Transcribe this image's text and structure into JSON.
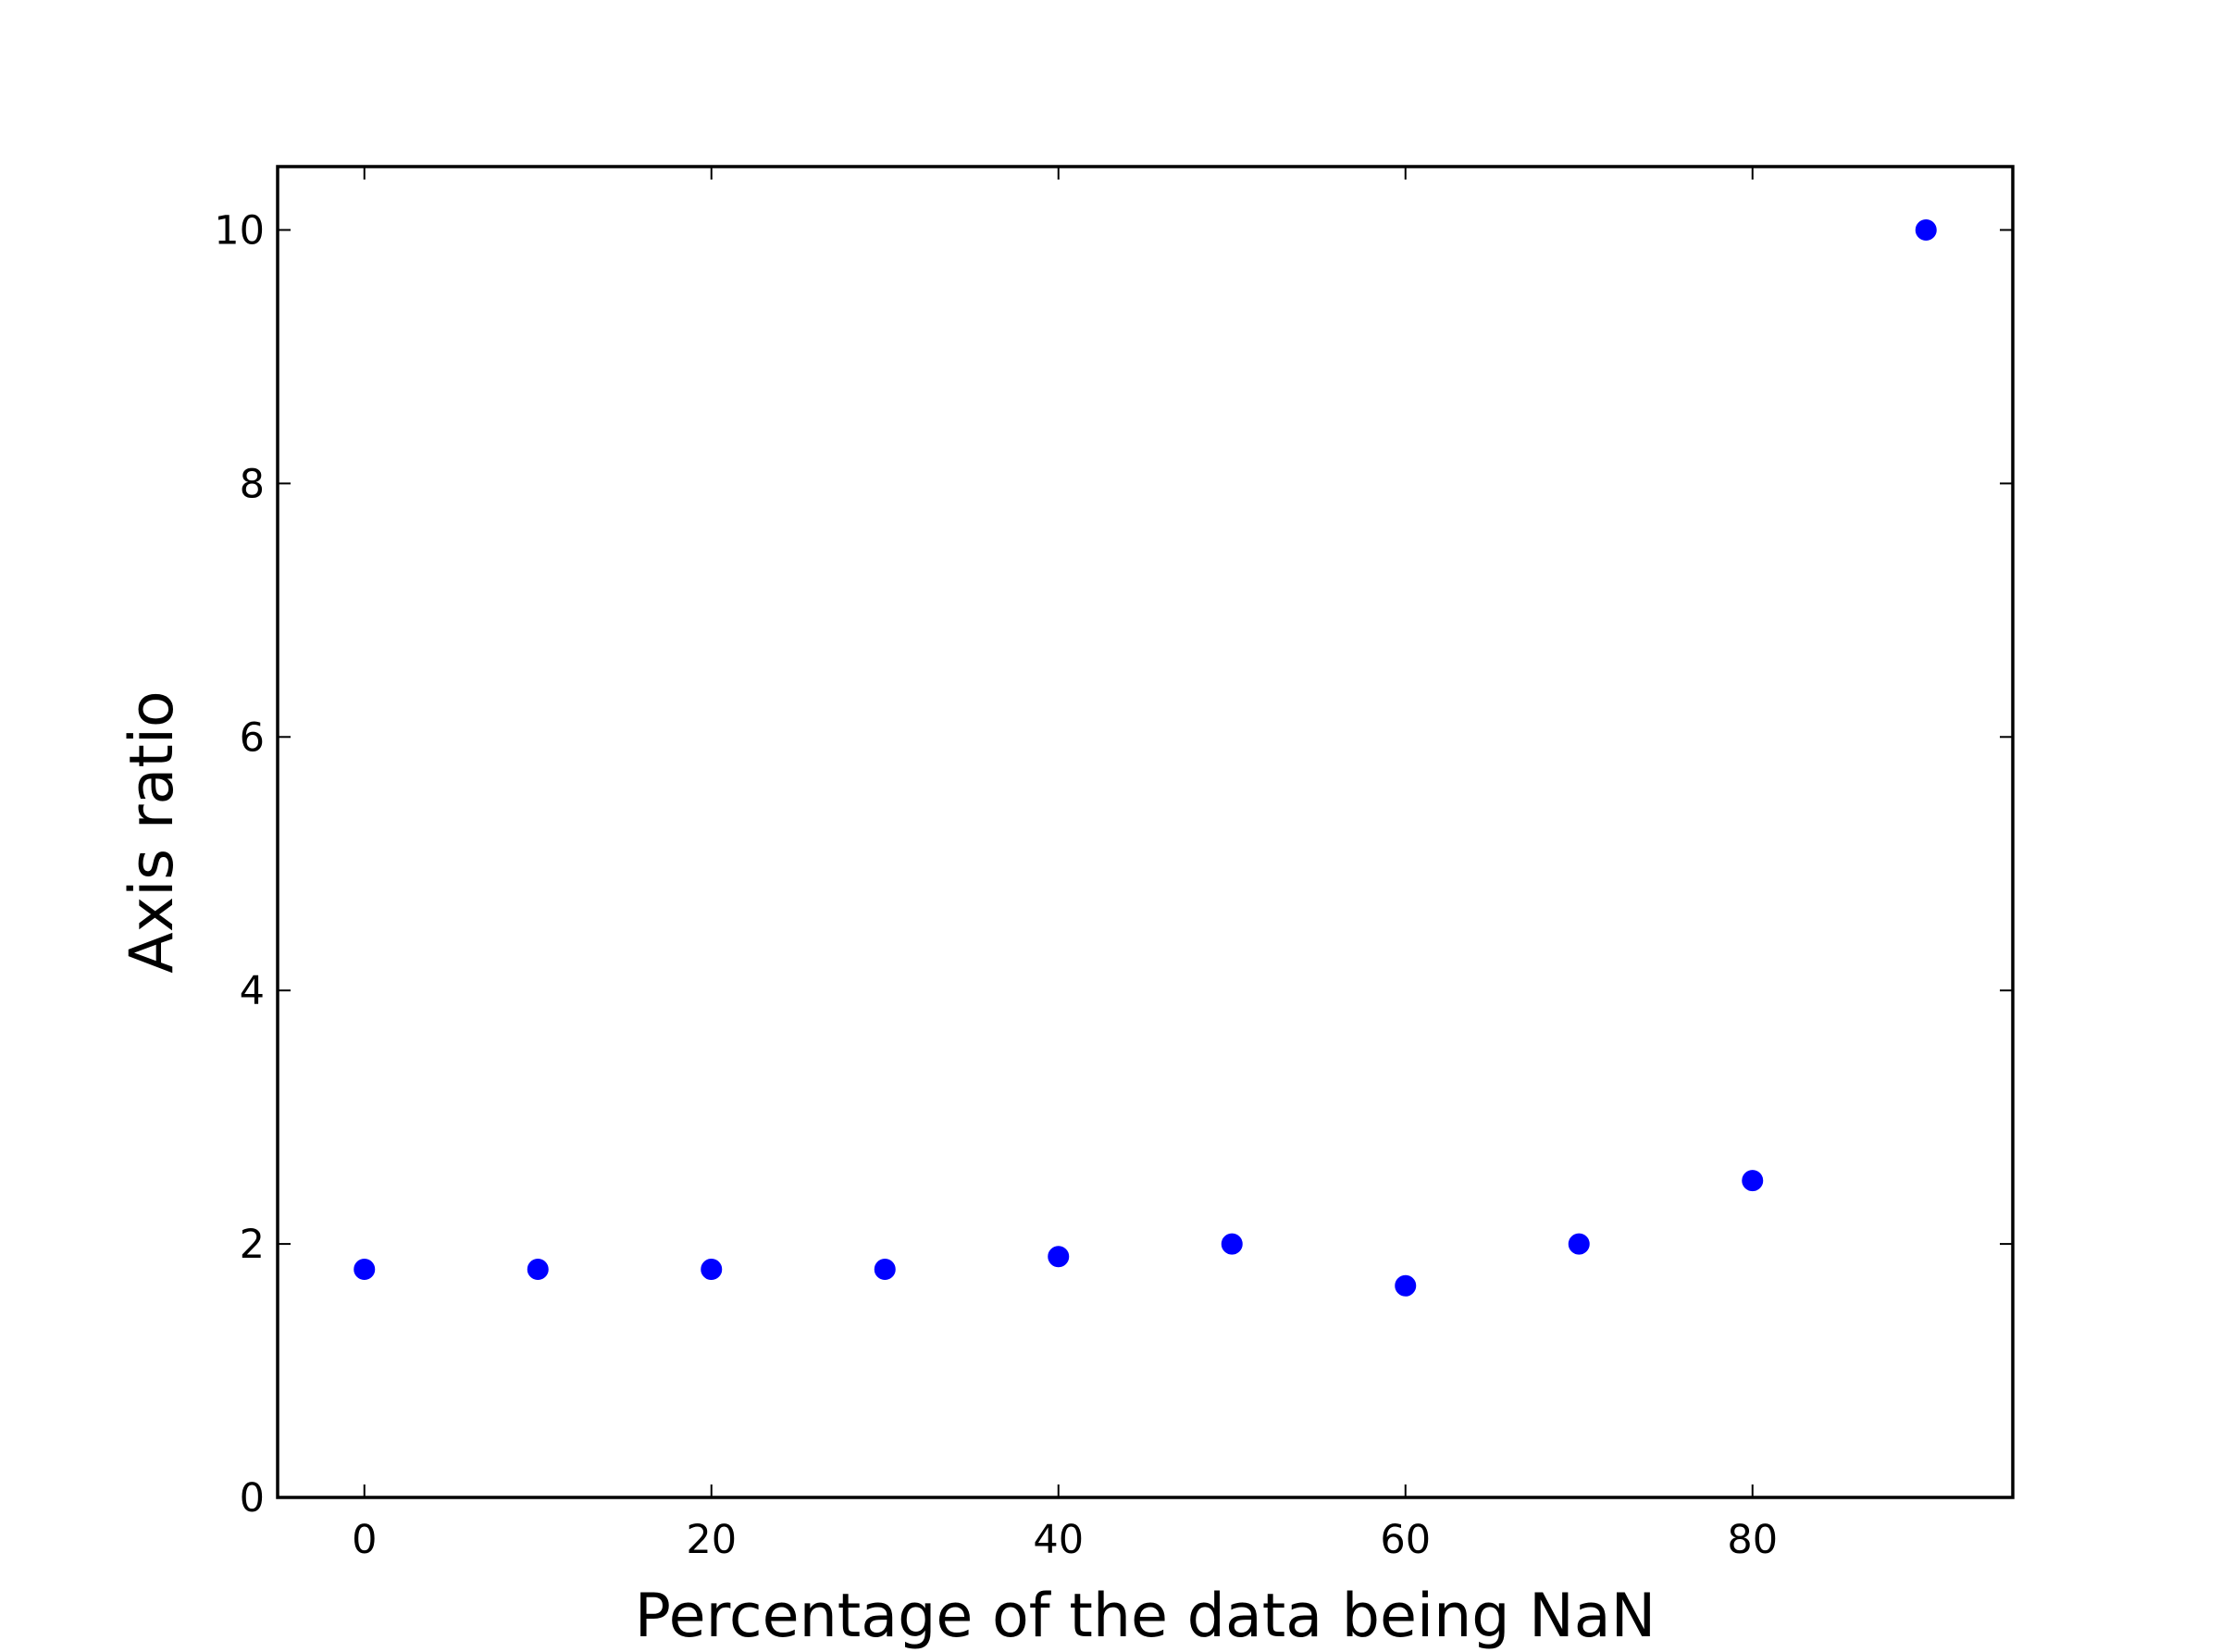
{
  "chart_data": {
    "type": "scatter",
    "title": "",
    "xlabel": "Percentage of the data being NaN",
    "ylabel": "Axis ratio",
    "xlim": [
      -5,
      95
    ],
    "ylim": [
      0,
      10.5
    ],
    "x_ticks": [
      0,
      20,
      40,
      60,
      80
    ],
    "x_tick_labels": [
      "0",
      "20",
      "40",
      "60",
      "80"
    ],
    "y_ticks": [
      0,
      2,
      4,
      6,
      8,
      10
    ],
    "y_tick_labels": [
      "0",
      "2",
      "4",
      "6",
      "8",
      "10"
    ],
    "grid": false,
    "series": [
      {
        "color": "#0000ff",
        "marker": "circle",
        "x": [
          0,
          10,
          20,
          30,
          40,
          50,
          60,
          70,
          80,
          90
        ],
        "y": [
          1.8,
          1.8,
          1.8,
          1.8,
          1.9,
          2.0,
          1.67,
          2.0,
          2.5,
          10.0
        ]
      }
    ]
  }
}
